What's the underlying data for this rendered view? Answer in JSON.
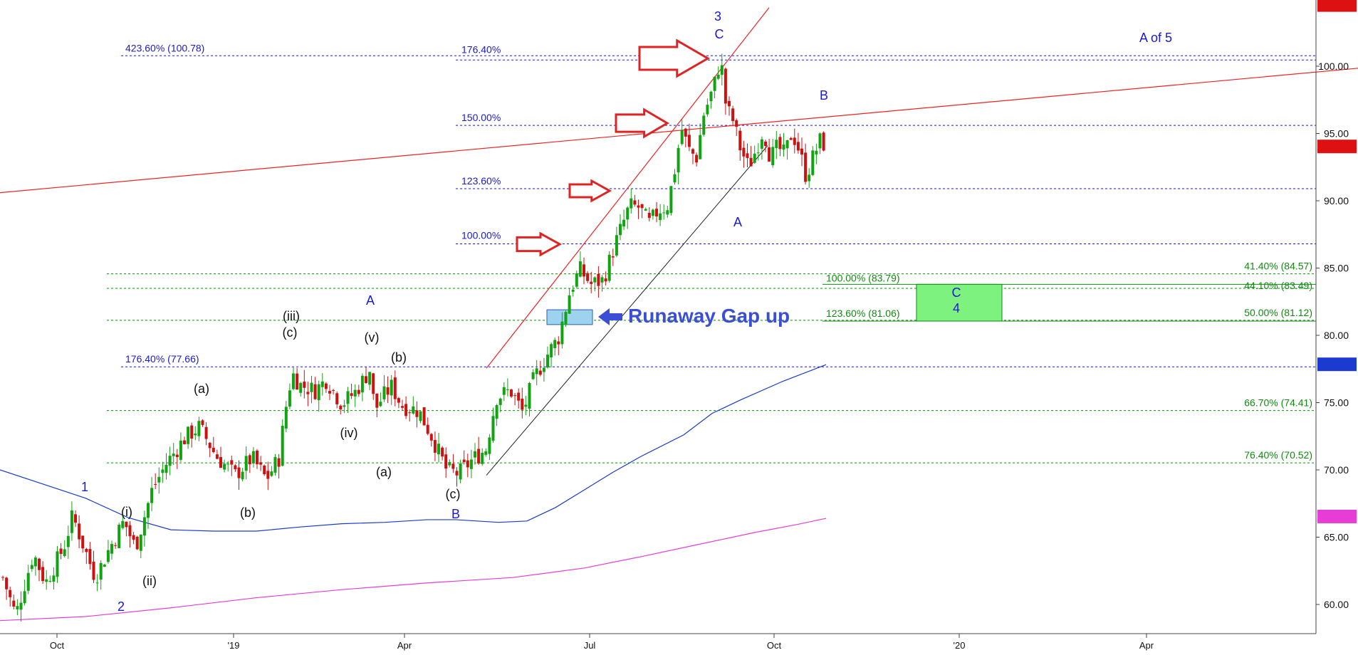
{
  "chart_data": {
    "type": "candlestick",
    "y_axis": {
      "min": 58.5,
      "max": 104.52,
      "ticks": [
        60,
        65,
        70,
        75,
        80,
        85,
        90,
        95,
        100
      ],
      "tick_labels": [
        "60.00",
        "65.00",
        "70.00",
        "75.00",
        "80.00",
        "85.00",
        "90.00",
        "95.00",
        "100.00"
      ]
    },
    "x_axis": {
      "labels": [
        "Oct",
        "'19",
        "Apr",
        "Jul",
        "Oct",
        "'20",
        "Apr"
      ]
    },
    "price_boxes": [
      {
        "value": 104.52,
        "label": "104.52",
        "color": "#dd1111"
      },
      {
        "value": 94.01,
        "label": "94.01",
        "color": "#dd1111"
      },
      {
        "value": 77.82,
        "label": "77.82",
        "color": "#1a3ad0"
      },
      {
        "value": 66.51,
        "label": "66.51",
        "color": "#e83cd6"
      }
    ],
    "fib_levels_blue": [
      {
        "value": 100.78,
        "label": "423.60% (100.78)",
        "extended_label": "176.40%"
      },
      {
        "value": 77.66,
        "label": "176.40% (77.66)"
      },
      {
        "value": 95.6,
        "label": "150.00%"
      },
      {
        "value": 90.9,
        "label": "123.60%"
      },
      {
        "value": 86.8,
        "label": "100.00%"
      }
    ],
    "fib_levels_green": [
      {
        "value": 84.57,
        "label": "41.40% (84.57)"
      },
      {
        "value": 83.49,
        "label": "44.10% (83.49)"
      },
      {
        "value": 81.12,
        "label": "50.00% (81.12)"
      },
      {
        "value": 74.41,
        "label": "66.70% (74.41)"
      },
      {
        "value": 70.52,
        "label": "76.40% (70.52)"
      },
      {
        "value": 83.79,
        "label": "100.00% (83.79)"
      },
      {
        "value": 81.06,
        "label": "123.60% (81.06)"
      }
    ],
    "wave_labels": {
      "blue": [
        "1",
        "2",
        "A",
        "B",
        "3",
        "C",
        "A",
        "B",
        "C",
        "4",
        "A of 5"
      ],
      "black": [
        "(i)",
        "(ii)",
        "(a)",
        "(b)",
        "(iii)",
        "(c)",
        "(iv)",
        "(v)",
        "(a)",
        "(b)",
        "(c)"
      ]
    },
    "annotations": {
      "gap_label": "Runaway Gap up"
    },
    "moving_averages": [
      {
        "color": "#1a3ad0",
        "last_value": 77.82
      },
      {
        "color": "#e83cd6",
        "last_value": 66.51
      }
    ],
    "grid": false
  }
}
